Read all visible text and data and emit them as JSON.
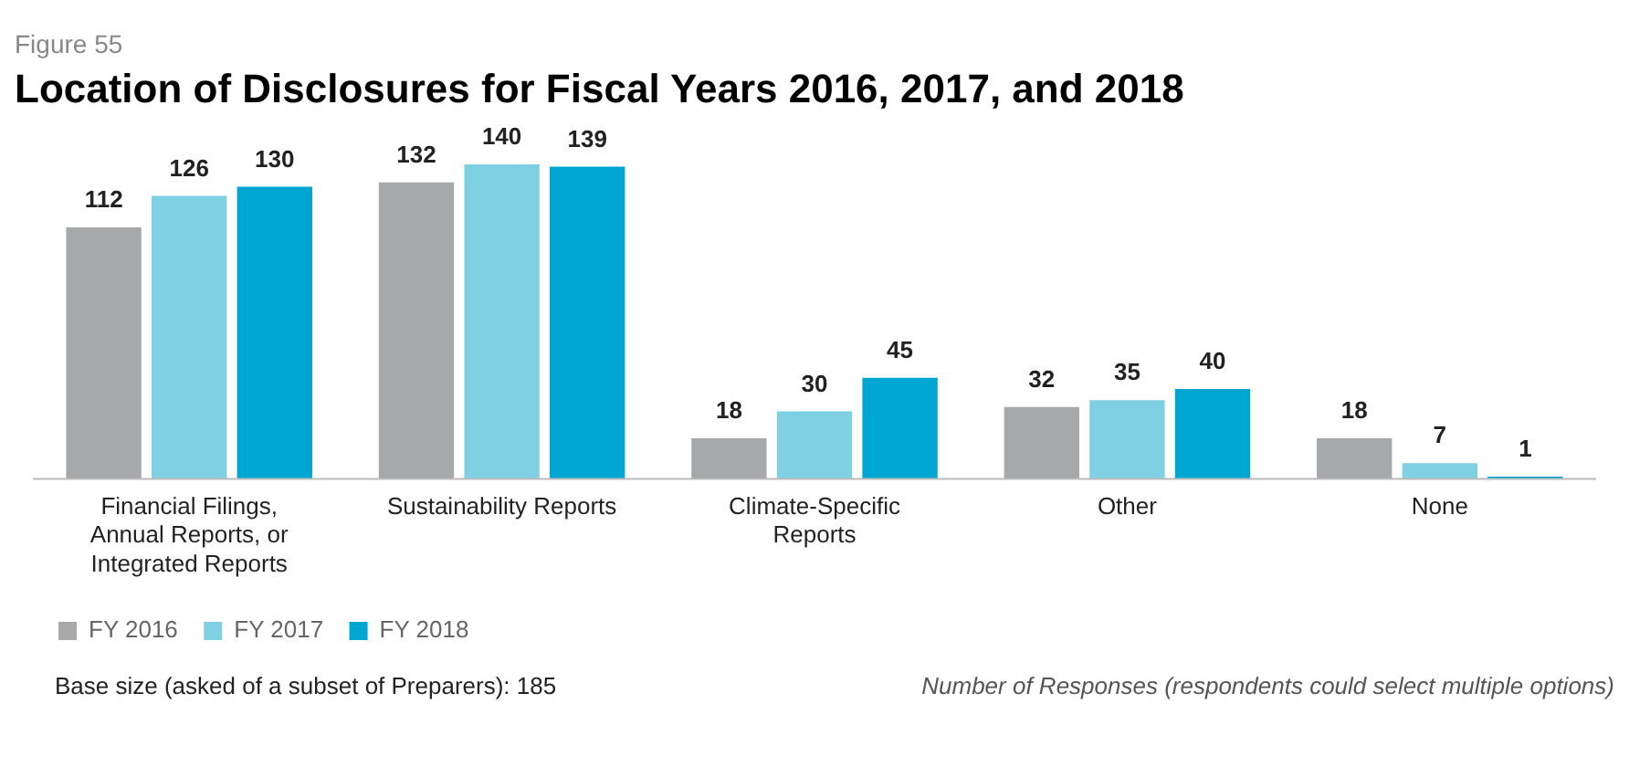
{
  "chart_data": {
    "type": "bar",
    "subtitle": "Figure 55",
    "title": "Location of Disclosures for Fiscal Years 2016, 2017, and 2018",
    "categories": [
      "Financial Filings, Annual Reports, or Integrated Reports",
      "Sustainability Reports",
      "Climate-Specific Reports",
      "Other",
      "None"
    ],
    "series": [
      {
        "name": "FY 2016",
        "color": "#a7a8aa",
        "values": [
          112,
          132,
          18,
          32,
          18
        ]
      },
      {
        "name": "FY 2017",
        "color": "#7fd0e3",
        "values": [
          126,
          140,
          30,
          35,
          7
        ]
      },
      {
        "name": "FY 2018",
        "color": "#00a6d2",
        "values": [
          130,
          139,
          45,
          40,
          1
        ]
      }
    ],
    "data_labels": true,
    "legend": "bottom left",
    "grid": false,
    "annotations": [
      "Number of Responses (respondents could select multiple options)",
      "Base size (asked of a subset of Preparers): 185"
    ]
  }
}
